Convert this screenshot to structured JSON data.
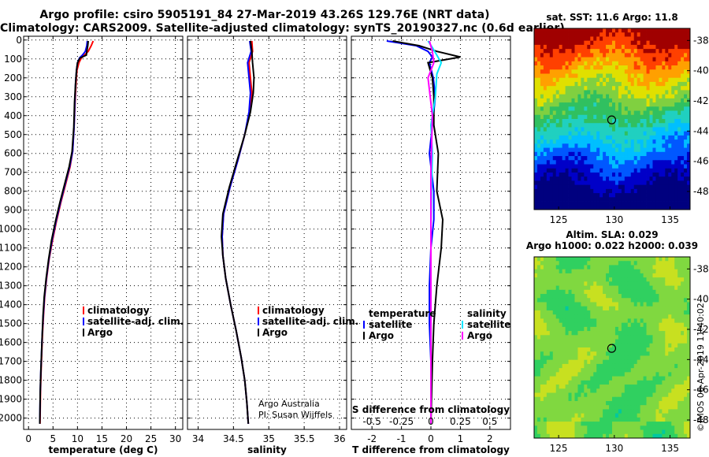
{
  "header": {
    "line1": "Argo profile: csiro 5905191_84 27-Mar-2019 43.26S 129.76E (NRT data)",
    "line2": "Climatology: CARS2009. Satellite-adjusted climatology: synTS_20190327.nc (0.6d earlier)"
  },
  "chart_data": [
    {
      "type": "line",
      "panel": "temperature",
      "xlabel": "temperature (deg C)",
      "xlim": [
        -1,
        31.5
      ],
      "xticks": [
        "0",
        "5",
        "10",
        "15",
        "20",
        "25",
        "30"
      ],
      "xtick_values": [
        0,
        5,
        10,
        15,
        20,
        25,
        30
      ],
      "ylim": [
        2060,
        -20
      ],
      "yticks": [
        "0",
        "100",
        "200",
        "300",
        "400",
        "500",
        "600",
        "700",
        "800",
        "900",
        "1000",
        "1100",
        "1200",
        "1300",
        "1400",
        "1500",
        "1600",
        "1700",
        "1800",
        "1900",
        "2000"
      ],
      "ytick_values": [
        0,
        100,
        200,
        300,
        400,
        500,
        600,
        700,
        800,
        900,
        1000,
        1100,
        1200,
        1300,
        1400,
        1500,
        1600,
        1700,
        1800,
        1900,
        2000
      ],
      "grid": true,
      "legend_position": "bottom-right",
      "series": [
        {
          "name": "climatology",
          "color": "#ff0000",
          "x": [
            13.2,
            12.8,
            12.2,
            11.4,
            10.8,
            10.3,
            9.9,
            9.7,
            9.5,
            9.3,
            9.0,
            8.5,
            7.6,
            6.6,
            5.7,
            4.9,
            4.2,
            3.7,
            3.3,
            3.05,
            2.85,
            2.7,
            2.55,
            2.45,
            2.35
          ],
          "y": [
            5,
            30,
            60,
            80,
            95,
            120,
            160,
            230,
            330,
            460,
            590,
            670,
            760,
            860,
            960,
            1060,
            1160,
            1260,
            1360,
            1460,
            1560,
            1660,
            1760,
            1860,
            2030
          ]
        },
        {
          "name": "satellite-adj. clim.",
          "color": "#0000ff",
          "x": [
            12.0,
            11.9,
            11.6,
            11.0,
            10.4,
            10.0,
            9.8,
            9.6,
            9.45,
            9.3,
            9.0,
            8.4,
            7.5,
            6.5,
            5.6,
            4.8,
            4.15,
            3.65,
            3.25,
            3.0,
            2.8,
            2.65,
            2.5,
            2.4,
            2.3
          ],
          "y": [
            5,
            30,
            60,
            80,
            95,
            120,
            160,
            230,
            330,
            460,
            590,
            670,
            760,
            860,
            960,
            1060,
            1160,
            1260,
            1360,
            1460,
            1560,
            1660,
            1760,
            1860,
            2030
          ]
        },
        {
          "name": "Argo",
          "color": "#000000",
          "x": [
            12.2,
            12.1,
            11.9,
            11.8,
            10.5,
            10.0,
            9.8,
            9.6,
            9.4,
            9.25,
            8.9,
            8.3,
            7.4,
            6.4,
            5.5,
            4.7,
            4.1,
            3.6,
            3.2,
            2.95,
            2.8,
            2.65,
            2.5,
            2.4,
            2.3
          ],
          "y": [
            5,
            30,
            60,
            80,
            95,
            120,
            160,
            230,
            330,
            460,
            590,
            670,
            760,
            860,
            960,
            1060,
            1160,
            1260,
            1360,
            1460,
            1560,
            1660,
            1760,
            1860,
            2030
          ]
        }
      ]
    },
    {
      "type": "line",
      "panel": "salinity",
      "xlabel": "salinity",
      "xlim": [
        33.85,
        36.1
      ],
      "xticks": [
        "34",
        "34.5",
        "35",
        "35.5",
        "36"
      ],
      "xtick_values": [
        34,
        34.5,
        35,
        35.5,
        36
      ],
      "ylim": [
        2060,
        -20
      ],
      "grid": true,
      "legend_position": "bottom-right",
      "annotation1": "Argo Australia",
      "annotation2": "PI: Susan Wijffels",
      "series": [
        {
          "name": "climatology",
          "color": "#ff0000",
          "x": [
            34.76,
            34.77,
            34.72,
            34.74,
            34.76,
            34.73,
            34.66,
            34.56,
            34.45,
            34.36,
            34.34,
            34.35,
            34.39,
            34.46,
            34.54,
            34.61,
            34.66,
            34.69,
            34.71
          ],
          "y": [
            5,
            60,
            120,
            200,
            280,
            380,
            500,
            640,
            780,
            920,
            1040,
            1140,
            1260,
            1400,
            1540,
            1680,
            1800,
            1920,
            2030
          ]
        },
        {
          "name": "satellite-adj. clim.",
          "color": "#0000ff",
          "x": [
            34.73,
            34.75,
            34.7,
            34.72,
            34.74,
            34.72,
            34.66,
            34.56,
            34.45,
            34.36,
            34.34,
            34.35,
            34.39,
            34.46,
            34.54,
            34.61,
            34.66,
            34.69,
            34.71
          ],
          "y": [
            5,
            60,
            120,
            200,
            280,
            380,
            500,
            640,
            780,
            920,
            1040,
            1140,
            1260,
            1400,
            1540,
            1680,
            1800,
            1920,
            2030
          ]
        },
        {
          "name": "Argo",
          "color": "#000000",
          "x": [
            34.74,
            34.76,
            34.77,
            34.79,
            34.78,
            34.74,
            34.66,
            34.55,
            34.44,
            34.35,
            34.33,
            34.35,
            34.39,
            34.46,
            34.54,
            34.61,
            34.66,
            34.69,
            34.71
          ],
          "y": [
            5,
            60,
            120,
            200,
            280,
            380,
            500,
            640,
            780,
            920,
            1040,
            1140,
            1260,
            1400,
            1540,
            1680,
            1800,
            1920,
            2030
          ]
        }
      ]
    },
    {
      "type": "line",
      "panel": "difference",
      "xlabel": "T difference from climatology",
      "xlabel_top": "S difference from climatology",
      "xlim": [
        -2.7,
        2.7
      ],
      "xticks": [
        "-2",
        "-1",
        "0",
        "1",
        "2"
      ],
      "xtick_values": [
        -2,
        -1,
        0,
        1,
        2
      ],
      "sticks": [
        "-0.5",
        "-0.25",
        "0",
        "0.25",
        "0.5"
      ],
      "stick_values": [
        -0.5,
        -0.25,
        0,
        0.25,
        0.5
      ],
      "ylim": [
        2060,
        -20
      ],
      "grid": true,
      "legend_temperature_title": "temperature",
      "legend_salinity_title": "salinity",
      "series": [
        {
          "name": "satellite",
          "group": "temperature",
          "color": "#0000ff",
          "x": [
            -1.5,
            -0.5,
            -0.1,
            0.05,
            -0.05,
            0.08,
            0.15,
            0.05,
            -0.05,
            0.1,
            0.1,
            0.0,
            -0.05,
            -0.05,
            0.0,
            0.0,
            0.0
          ],
          "y": [
            5,
            30,
            60,
            90,
            120,
            200,
            300,
            450,
            600,
            800,
            950,
            1100,
            1300,
            1500,
            1700,
            1900,
            2030
          ]
        },
        {
          "name": "Argo",
          "group": "temperature",
          "color": "#000000",
          "x": [
            -1.3,
            -0.4,
            0.2,
            1.0,
            -0.1,
            0.05,
            0.1,
            0.1,
            0.25,
            0.2,
            0.4,
            0.35,
            0.2,
            0.1,
            0.05,
            0.02,
            0.0
          ],
          "y": [
            5,
            30,
            60,
            90,
            120,
            200,
            300,
            450,
            600,
            800,
            950,
            1100,
            1300,
            1500,
            1700,
            1900,
            2030
          ]
        },
        {
          "name": "satellite",
          "group": "salinity",
          "color": "#00e5ff",
          "x": [
            -0.1,
            0.05,
            0.2,
            0.35,
            0.2,
            0.15,
            0.0,
            0.05,
            0.02,
            0.0,
            0.0,
            0.0,
            0.0,
            0.0,
            0.0
          ],
          "y": [
            5,
            40,
            80,
            120,
            180,
            300,
            450,
            600,
            800,
            1000,
            1200,
            1400,
            1600,
            1800,
            2030
          ]
        },
        {
          "name": "Argo",
          "group": "salinity",
          "color": "#ff00ff",
          "x": [
            -0.05,
            0.05,
            0.1,
            -0.1,
            0.05,
            0.0,
            0.0,
            0.0,
            0.0,
            0.0
          ],
          "y": [
            5,
            60,
            120,
            200,
            400,
            700,
            1000,
            1300,
            1600,
            2030
          ]
        }
      ]
    },
    {
      "type": "heatmap",
      "panel": "sst-map",
      "title": "sat. SST: 11.6 Argo: 11.8",
      "xticks": [
        "125",
        "130",
        "135"
      ],
      "xtick_values": [
        125,
        130,
        135
      ],
      "yticks": [
        "-38",
        "-40",
        "-42",
        "-44",
        "-46",
        "-48"
      ],
      "ytick_values": [
        -38,
        -40,
        -42,
        -44,
        -46,
        -48
      ],
      "xlim": [
        122.8,
        136.8
      ],
      "ylim": [
        -49.2,
        -37.2
      ],
      "marker": {
        "lon": 129.76,
        "lat": -43.26
      },
      "colormap": [
        "#00007f",
        "#0000c8",
        "#0058ff",
        "#00bfff",
        "#20d0c0",
        "#30c060",
        "#80d040",
        "#e0e000",
        "#ffa000",
        "#ff4000",
        "#a00000"
      ],
      "description_values": "cold (blue) south of 45S, green at 43S, yellow/orange/red north of 40S"
    },
    {
      "type": "heatmap",
      "panel": "sla-map",
      "title": "Altim. SLA: 0.029",
      "subtitle": "Argo h1000: 0.022 h2000: 0.039",
      "xticks": [
        "125",
        "130",
        "135"
      ],
      "xtick_values": [
        125,
        130,
        135
      ],
      "yticks": [
        "-38",
        "-40",
        "-42",
        "-44",
        "-46",
        "-48"
      ],
      "ytick_values": [
        -38,
        -40,
        -42,
        -44,
        -46,
        -48
      ],
      "xlim": [
        122.8,
        136.8
      ],
      "ylim": [
        -49.2,
        -37.2
      ],
      "marker": {
        "lon": 129.76,
        "lat": -43.26
      },
      "colormap": [
        "#00c8a0",
        "#30d060",
        "#80d840",
        "#c8e020",
        "#f0f000"
      ]
    }
  ],
  "footer": {
    "stamp": "©IMOS 06-Apr-2019 11:40:02"
  }
}
